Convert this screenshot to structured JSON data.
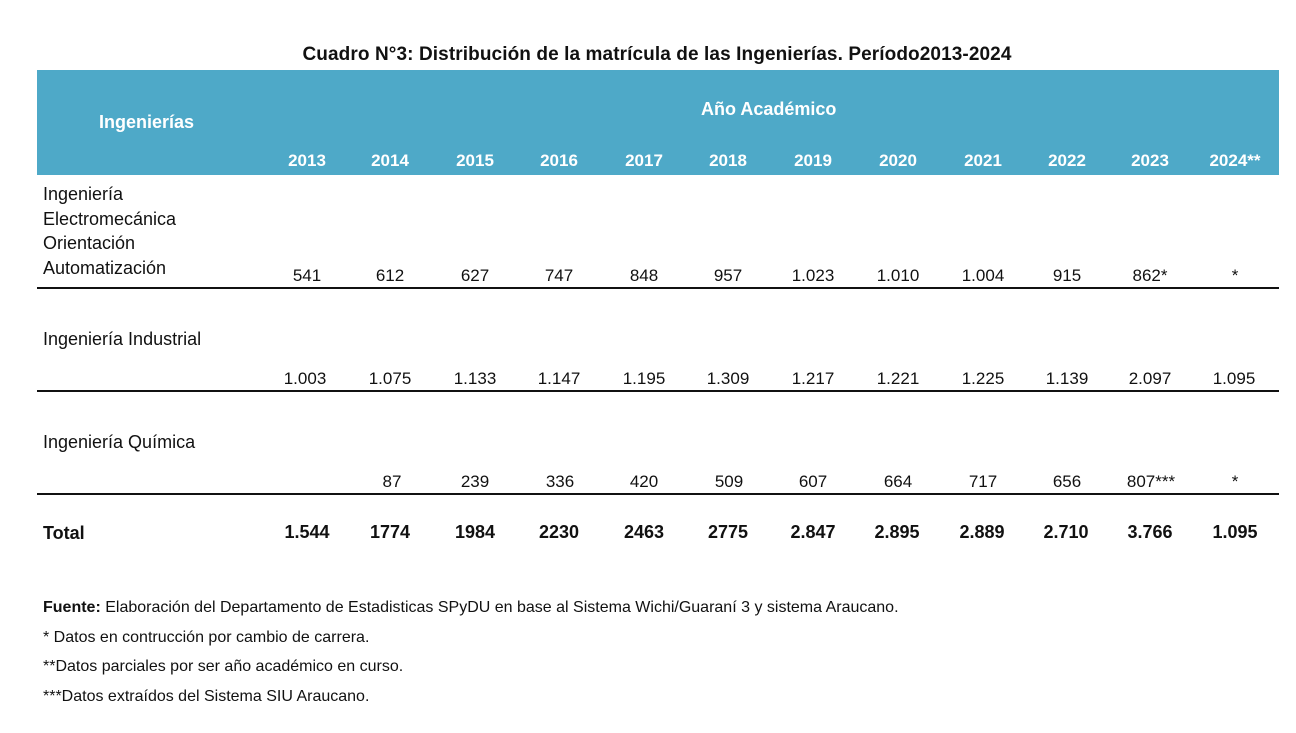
{
  "title": "Cuadro N°3: Distribución de la matrícula de las Ingenierías. Período2013-2024",
  "header": {
    "col_label": "Ingenierías",
    "group_label": "Año Académico",
    "years": [
      "2013",
      "2014",
      "2015",
      "2016",
      "2017",
      "2018",
      "2019",
      "2020",
      "2021",
      "2022",
      "2023",
      "2024**"
    ]
  },
  "rows": [
    {
      "label_lines": [
        "Ingeniería",
        "Electromecánica",
        "Orientación",
        "Automatización"
      ],
      "values": [
        "541",
        "612",
        "627",
        "747",
        "848",
        "957",
        "1.023",
        "1.010",
        "1.004",
        "915",
        "862*",
        "*"
      ]
    },
    {
      "label_lines": [
        "Ingeniería Industrial"
      ],
      "values": [
        "1.003",
        "1.075",
        "1.133",
        "1.147",
        "1.195",
        "1.309",
        "1.217",
        "1.221",
        "1.225",
        "1.139",
        "2.097",
        "1.095"
      ]
    },
    {
      "label_lines": [
        "Ingeniería Química"
      ],
      "values": [
        "",
        "87",
        "239",
        "336",
        "420",
        "509",
        "607",
        "664",
        "717",
        "656",
        "807***",
        "*"
      ]
    }
  ],
  "total": {
    "label": "Total",
    "values": [
      "1.544",
      "1774",
      "1984",
      "2230",
      "2463",
      "2775",
      "2.847",
      "2.895",
      "2.889",
      "2.710",
      "3.766",
      "1.095"
    ]
  },
  "notes": {
    "source_label": "Fuente:",
    "source_text": " Elaboración del Departamento de Estadisticas SPyDU en base al Sistema Wichi/Guaraní 3 y sistema Araucano.",
    "note1": "* Datos en contrucción por cambio de carrera.",
    "note2": "**Datos parciales por ser año académico en curso.",
    "note3": "***Datos extraídos del Sistema SIU Araucano."
  }
}
